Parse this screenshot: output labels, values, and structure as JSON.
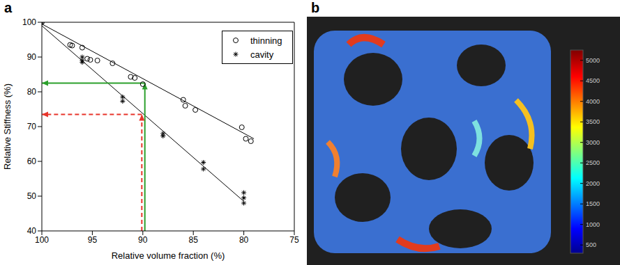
{
  "chart_data": [
    {
      "panel": "a",
      "type": "scatter",
      "x_label": "Relative volume fraction (%)",
      "y_label": "Relative Stiffness (%)",
      "xlim": [
        100,
        75
      ],
      "xticks": [
        100,
        95,
        90,
        85,
        80,
        75
      ],
      "ylim": [
        40,
        100
      ],
      "yticks": [
        40,
        50,
        60,
        70,
        80,
        90,
        100
      ],
      "grid": false,
      "legend": "upper right",
      "series": [
        {
          "name": "thinning",
          "marker": "circle",
          "color": "#000000",
          "x": [
            100,
            97.2,
            97,
            96,
            95.5,
            95.2,
            94.5,
            93,
            91.2,
            90.8,
            90,
            86,
            85.8,
            84.8,
            80.2,
            79.8,
            79.3
          ],
          "values": [
            100,
            93.5,
            93.3,
            92.7,
            89.5,
            89.2,
            89,
            88.2,
            84.3,
            84,
            82.2,
            77.7,
            76,
            74.8,
            69.8,
            66.5,
            65.8
          ],
          "fit": {
            "x": [
              100,
              79
            ],
            "y": [
              99.5,
              66.5
            ]
          }
        },
        {
          "name": "cavity",
          "marker": "asterisk",
          "color": "#000000",
          "x": [
            100,
            96,
            96,
            96,
            92,
            92,
            88,
            88,
            84,
            84,
            80,
            80,
            80
          ],
          "values": [
            100,
            90,
            89,
            88.5,
            78.5,
            77.3,
            68,
            67.3,
            59.7,
            57.8,
            51,
            49.5,
            48
          ],
          "fit": {
            "x": [
              100,
              80
            ],
            "y": [
              99,
              48.5
            ]
          }
        }
      ],
      "annotations": [
        {
          "x": 89.8,
          "y": 82.5,
          "color": "#2ca02c",
          "line_style": "solid"
        },
        {
          "x": 90.1,
          "y": 73.5,
          "color": "#e8352b",
          "line_style": "dashed"
        }
      ]
    },
    {
      "panel": "b",
      "type": "image",
      "colorbar": {
        "range": [
          300,
          5250
        ],
        "ticks": [
          500,
          1000,
          1500,
          2000,
          2500,
          3000,
          3500,
          4000,
          4500,
          5000
        ]
      }
    }
  ]
}
